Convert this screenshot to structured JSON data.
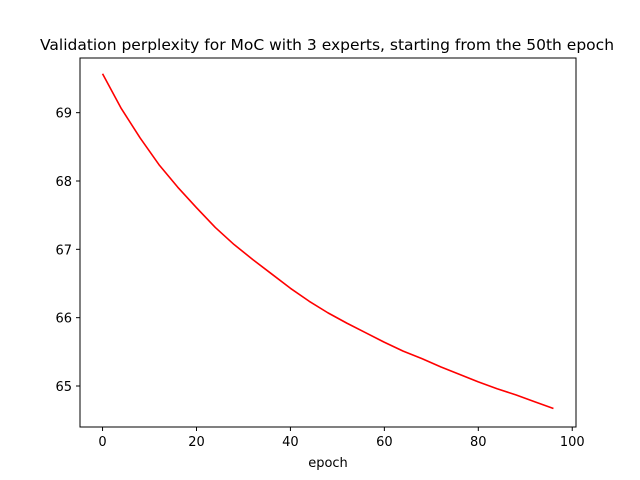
{
  "chart_data": {
    "type": "line",
    "title": "Validation perplexity for MoC with 3 experts, starting from the 50th epoch",
    "xlabel": "epoch",
    "ylabel": "",
    "xlim": [
      -4.8,
      100.8
    ],
    "ylim": [
      64.4,
      69.8
    ],
    "xticks": [
      0,
      20,
      40,
      60,
      80,
      100
    ],
    "yticks": [
      65,
      66,
      67,
      68,
      69
    ],
    "grid": false,
    "series": [
      {
        "color": "#ff0000",
        "x": [
          0,
          4,
          8,
          12,
          16,
          20,
          24,
          28,
          32,
          36,
          40,
          44,
          48,
          52,
          56,
          60,
          64,
          68,
          72,
          76,
          80,
          84,
          88,
          92,
          96
        ],
        "y": [
          69.57,
          69.06,
          68.63,
          68.24,
          67.91,
          67.61,
          67.32,
          67.07,
          66.85,
          66.64,
          66.43,
          66.24,
          66.07,
          65.92,
          65.78,
          65.64,
          65.51,
          65.4,
          65.28,
          65.17,
          65.06,
          64.96,
          64.87,
          64.77,
          64.67
        ]
      }
    ]
  }
}
